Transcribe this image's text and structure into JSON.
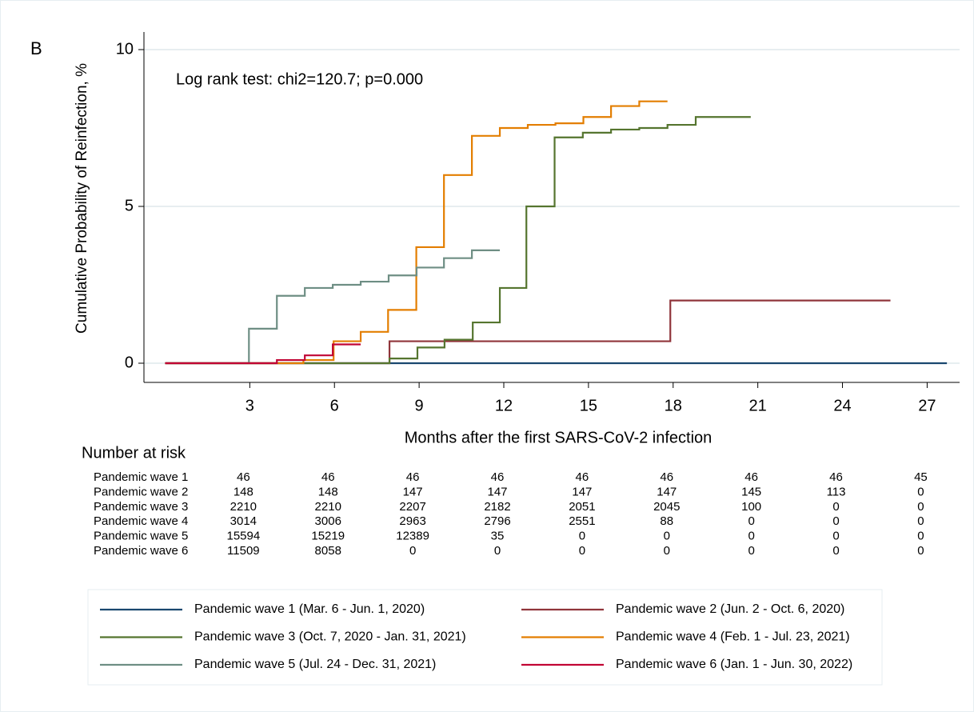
{
  "chart_data": {
    "type": "line",
    "step": "post",
    "panel_label": "B",
    "annotation": "Log rank test: chi2=120.7; p=0.000",
    "y_label": "Cumulative Probability of Reinfection, %",
    "x_label": "Months after the first SARS-CoV-2 infection",
    "xlim": [
      -0.75,
      28.15
    ],
    "ylim": [
      0,
      10
    ],
    "xticks": [
      3,
      6,
      9,
      12,
      15,
      18,
      21,
      24,
      27
    ],
    "yticks": [
      0,
      5,
      10
    ],
    "grid": true,
    "series": [
      {
        "name": "Pandemic wave 1 (Mar. 6 - Jun. 1, 2020)",
        "color": "#1a476f",
        "x": [
          0,
          27.7
        ],
        "values": [
          0,
          0
        ]
      },
      {
        "name": "Pandemic wave 2 (Jun. 2 -  Oct. 6, 2020)",
        "color": "#90353b",
        "x": [
          0,
          7.95,
          17.9,
          25.7
        ],
        "values": [
          0,
          0.7,
          2.0,
          2.0
        ]
      },
      {
        "name": "Pandemic wave 3 (Oct. 7, 2020 - Jan. 31, 2021)",
        "color": "#55752f",
        "x": [
          0,
          7.95,
          8.94,
          9.9,
          10.9,
          11.86,
          12.8,
          13.8,
          14.8,
          15.8,
          16.8,
          17.8,
          18.8,
          20.75
        ],
        "values": [
          0,
          0.15,
          0.5,
          0.75,
          1.3,
          2.4,
          5.0,
          7.2,
          7.35,
          7.45,
          7.5,
          7.6,
          7.85,
          7.85
        ]
      },
      {
        "name": "Pandemic wave 4 (Feb. 1 - Jul. 23, 2021)",
        "color": "#e37e00",
        "x": [
          0,
          4.9,
          5.97,
          6.93,
          7.9,
          8.9,
          9.88,
          10.87,
          11.86,
          12.85,
          13.83,
          14.82,
          15.8,
          16.8,
          17.8
        ],
        "values": [
          0,
          0.1,
          0.7,
          1.0,
          1.7,
          3.7,
          6.0,
          7.25,
          7.5,
          7.6,
          7.65,
          7.85,
          8.2,
          8.35,
          8.35
        ]
      },
      {
        "name": "Pandemic wave 5 (Jul. 24 - Dec. 31, 2021)",
        "color": "#6e8e84",
        "x": [
          0,
          2.97,
          3.96,
          4.95,
          5.94,
          6.93,
          7.92,
          8.91,
          9.88,
          10.87,
          11.86
        ],
        "values": [
          0,
          1.1,
          2.15,
          2.4,
          2.5,
          2.6,
          2.8,
          3.05,
          3.35,
          3.6,
          3.6
        ]
      },
      {
        "name": "Pandemic wave 6 (Jan. 1 - Jun. 30, 2022)",
        "color": "#c10534",
        "x": [
          0,
          3.96,
          4.95,
          5.94,
          6.93
        ],
        "values": [
          0,
          0.1,
          0.25,
          0.6,
          0.6
        ]
      }
    ]
  },
  "risk_table": {
    "title": "Number at risk",
    "rows": [
      {
        "label": "Pandemic wave 1",
        "values": [
          "46",
          "46",
          "46",
          "46",
          "46",
          "46",
          "46",
          "46",
          "45"
        ]
      },
      {
        "label": "Pandemic wave 2",
        "values": [
          "148",
          "148",
          "147",
          "147",
          "147",
          "147",
          "145",
          "113",
          "0"
        ]
      },
      {
        "label": "Pandemic wave 3",
        "values": [
          "2210",
          "2210",
          "2207",
          "2182",
          "2051",
          "2045",
          "100",
          "0",
          "0"
        ]
      },
      {
        "label": "Pandemic wave 4",
        "values": [
          "3014",
          "3006",
          "2963",
          "2796",
          "2551",
          "88",
          "0",
          "0",
          "0"
        ]
      },
      {
        "label": "Pandemic wave 5",
        "values": [
          "15594",
          "15219",
          "12389",
          "35",
          "0",
          "0",
          "0",
          "0",
          "0"
        ]
      },
      {
        "label": "Pandemic wave 6",
        "values": [
          "11509",
          "8058",
          "0",
          "0",
          "0",
          "0",
          "0",
          "0",
          "0"
        ]
      }
    ]
  }
}
